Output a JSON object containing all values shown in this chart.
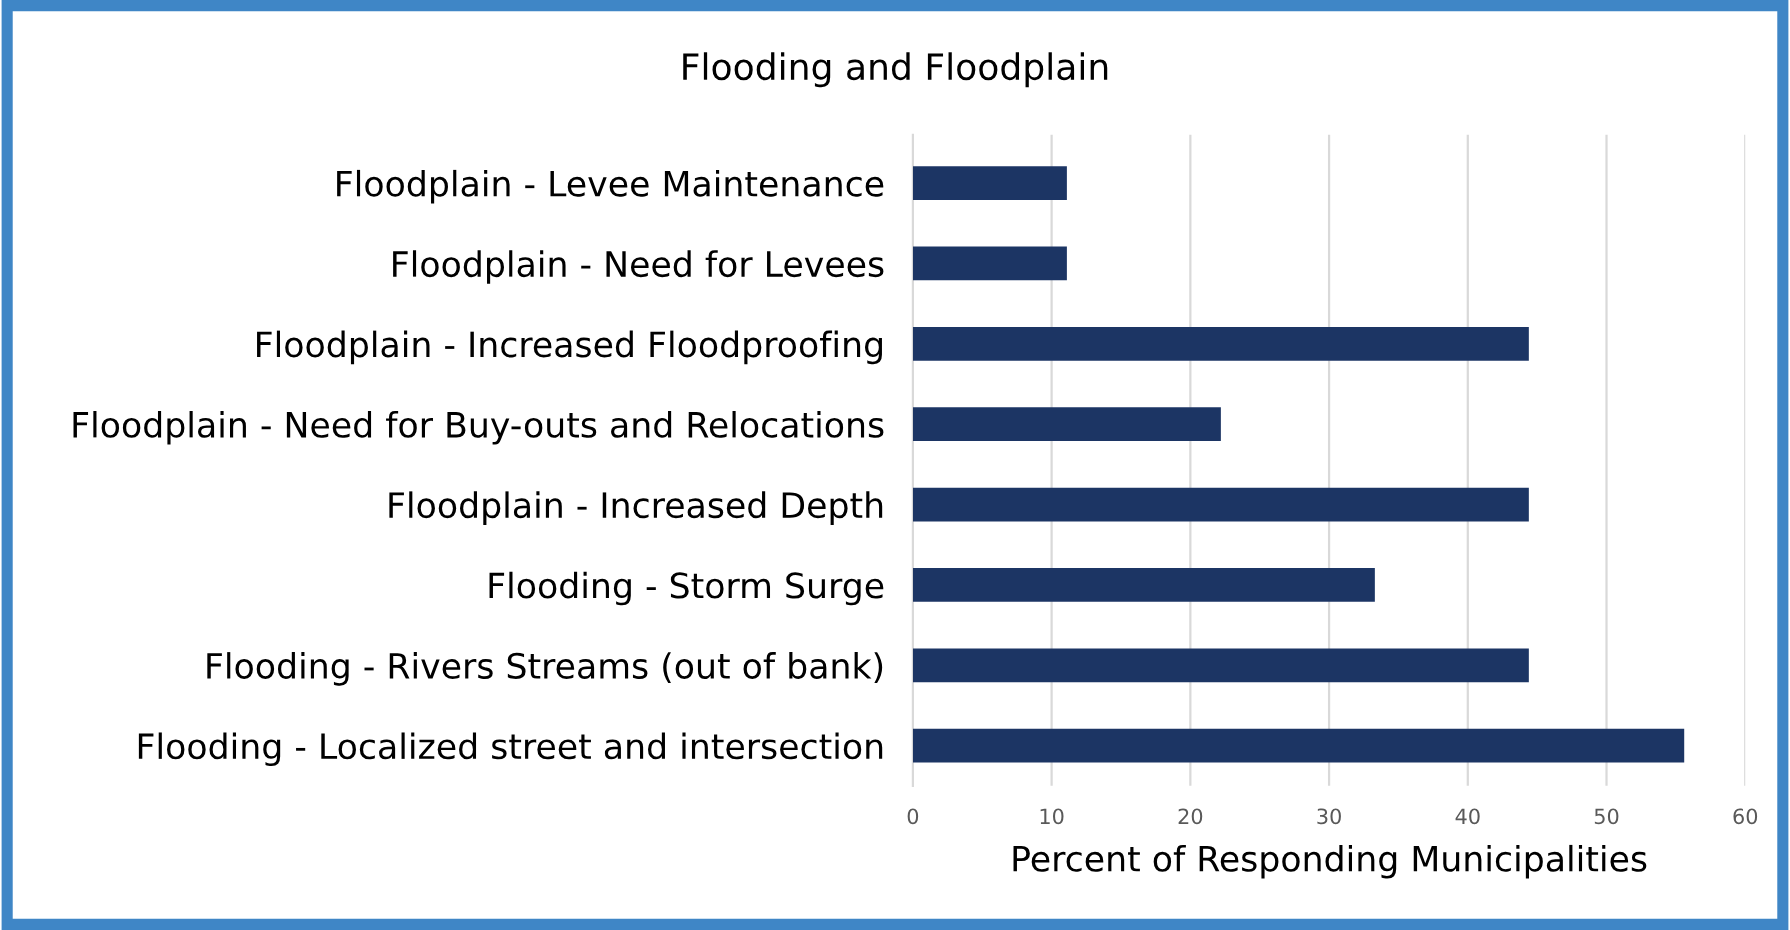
{
  "chart_data": {
    "type": "bar",
    "orientation": "horizontal",
    "title": "Flooding and Floodplain",
    "xlabel": "Percent of Responding Municipalities",
    "categories": [
      "Floodplain - Levee Maintenance",
      "Floodplain - Need for Levees",
      "Floodplain - Increased Floodproofing",
      "Floodplain - Need for Buy-outs and Relocations",
      "Floodplain - Increased Depth",
      "Flooding - Storm Surge",
      "Flooding - Rivers Streams (out of bank)",
      "Flooding - Localized street and intersection"
    ],
    "values": [
      11.1,
      11.1,
      44.4,
      22.2,
      44.4,
      33.3,
      44.4,
      55.6
    ],
    "color": "#1c3564",
    "xlim": [
      0,
      60
    ],
    "xticks": [
      0,
      10,
      20,
      30,
      40,
      50,
      60
    ],
    "grid": "x"
  }
}
